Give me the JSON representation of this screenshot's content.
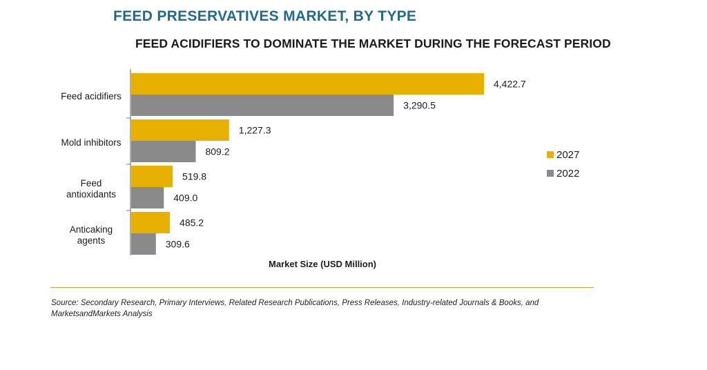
{
  "title": "FEED PRESERVATIVES MARKET, BY TYPE",
  "subtitle": "FEED ACIDIFIERS TO DOMINATE THE MARKET DURING THE FORECAST PERIOD",
  "source": "Source: Secondary Research, Primary Interviews, Related Research Publications, Press Releases, Industry-related Journals & Books, and MarketsandMarkets Analysis",
  "colors": {
    "2027": "#e8b000",
    "2022": "#8a8a8a",
    "title": "#1f6b8c",
    "rule": "#c9a227"
  },
  "chart_data": {
    "type": "bar",
    "orientation": "horizontal",
    "title": "FEED PRESERVATIVES MARKET, BY TYPE",
    "subtitle": "FEED ACIDIFIERS TO DOMINATE THE MARKET DURING THE FORECAST PERIOD",
    "xlabel": "Market Size (USD Million)",
    "ylabel": "",
    "categories": [
      [
        "Feed acidifiers"
      ],
      [
        "Mold inhibitors"
      ],
      [
        "Feed",
        "antioxidants"
      ],
      [
        "Anticaking",
        "agents"
      ]
    ],
    "series": [
      {
        "name": "2027",
        "color": "#e8b000",
        "values": [
          4422.7,
          1227.3,
          519.8,
          485.2
        ],
        "labels": [
          "4,422.7",
          "1,227.3",
          "519.8",
          "485.2"
        ]
      },
      {
        "name": "2022",
        "color": "#8a8a8a",
        "values": [
          3290.5,
          809.2,
          409.0,
          309.6
        ],
        "labels": [
          "3,290.5",
          "809.2",
          "409.0",
          "309.6"
        ]
      }
    ],
    "xlim": [
      0,
      4422.7
    ],
    "grid": false,
    "legend": "right"
  }
}
